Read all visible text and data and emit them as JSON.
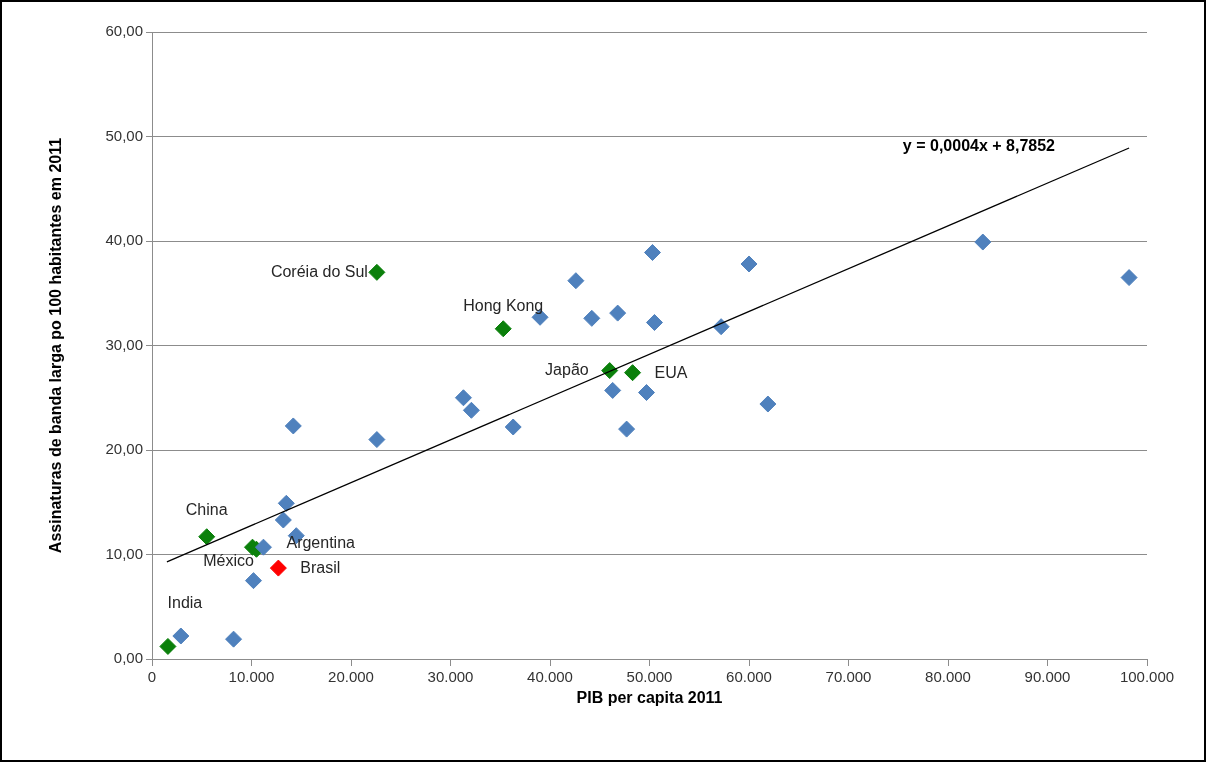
{
  "chart_data": {
    "type": "scatter",
    "xlabel": "PIB per capita 2011",
    "ylabel": "Assinaturas de banda larga po 100 habitantes em 2011",
    "xlim": [
      0,
      100000
    ],
    "xticks": [
      0,
      {
        "value": 10000,
        "label": "10.000"
      },
      {
        "value": 20000,
        "label": "20.000"
      },
      {
        "value": 30000,
        "label": "30.000"
      },
      {
        "value": 40000,
        "label": "40.000"
      },
      {
        "value": 50000,
        "label": "50.000"
      },
      {
        "value": 60000,
        "label": "60.000"
      },
      {
        "value": 70000,
        "label": "70.000"
      },
      {
        "value": 80000,
        "label": "80.000"
      },
      {
        "value": 90000,
        "label": "90.000"
      },
      {
        "value": 100000,
        "label": "100.000"
      }
    ],
    "ylim": [
      0,
      60
    ],
    "yticks": [
      {
        "value": 0,
        "label": "0,00"
      },
      {
        "value": 10,
        "label": "10,00"
      },
      {
        "value": 20,
        "label": "20,00"
      },
      {
        "value": 30,
        "label": "30,00"
      },
      {
        "value": 40,
        "label": "40,00"
      },
      {
        "value": 50,
        "label": "50,00"
      },
      {
        "value": 60,
        "label": "60,00"
      }
    ],
    "grid": "y",
    "marker": "diamond",
    "series": [
      {
        "color": "#4f81bd",
        "x": [
          2900,
          8200,
          10200,
          11200,
          13200,
          13500,
          14500,
          14200,
          22600,
          31300,
          32100,
          36300,
          39000,
          42600,
          44200,
          46800,
          50300,
          50500,
          60000,
          57200,
          46300,
          49700,
          47700,
          61900,
          83500,
          98200
        ],
        "values": [
          2.2,
          1.9,
          7.5,
          10.7,
          13.3,
          14.9,
          11.8,
          22.3,
          21.0,
          25.0,
          23.8,
          22.2,
          32.7,
          36.2,
          32.6,
          33.1,
          38.9,
          32.2,
          37.8,
          31.8,
          25.7,
          25.5,
          22.0,
          24.4,
          39.9,
          36.5
        ]
      },
      {
        "color": "#0b800b",
        "x": [
          1600,
          5500,
          10100,
          10500,
          22600,
          35300,
          46000,
          48300
        ],
        "values": [
          1.2,
          11.7,
          10.7,
          10.5,
          37.0,
          31.6,
          27.6,
          27.4
        ]
      },
      {
        "color": "#ff0000",
        "x": [
          12700
        ],
        "values": [
          8.7
        ]
      },
      {
        "type": "line",
        "color": "#000000",
        "marker": "none",
        "x": [
          1500,
          98200
        ],
        "values": [
          9.3,
          48.9
        ]
      }
    ],
    "annotations": [
      "y = 0,0004x + 8,7852",
      {
        "text": "Coréia do Sul",
        "x": 22600,
        "y": 37.0
      },
      {
        "text": "Hong Kong",
        "x": 35300,
        "y": 31.6
      },
      {
        "text": "Japão",
        "x": 46000,
        "y": 27.6
      },
      {
        "text": "EUA",
        "x": 48300,
        "y": 27.4
      },
      {
        "text": "China",
        "x": 5500,
        "y": 11.7
      },
      {
        "text": "Argentina",
        "x": 10500,
        "y": 10.5
      },
      {
        "text": "México",
        "x": 10100,
        "y": 10.7
      },
      {
        "text": "Brasil",
        "x": 12700,
        "y": 8.7
      },
      {
        "text": "India",
        "x": 1600,
        "y": 1.2
      }
    ]
  }
}
